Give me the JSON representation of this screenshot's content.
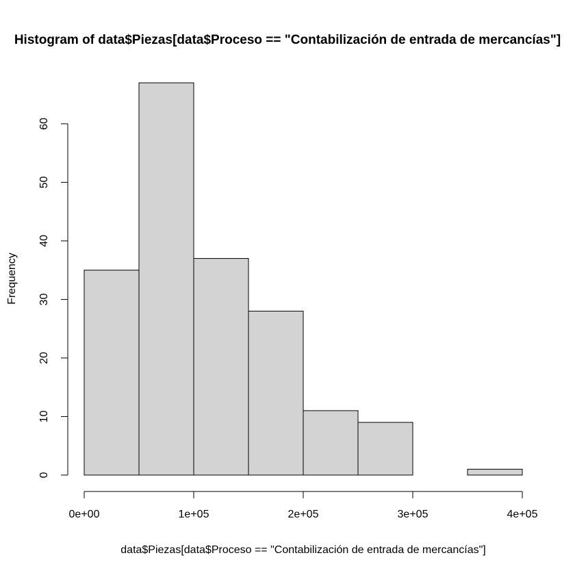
{
  "chart_data": {
    "type": "bar",
    "title": "Histogram of data$Piezas[data$Proceso == \"Contabilización de entrada de mercancías\"]",
    "xlabel": "data$Piezas[data$Proceso == \"Contabilización de entrada de mercancías\"]",
    "ylabel": "Frequency",
    "bins": [
      {
        "from": 0,
        "to": 50000,
        "count": 35
      },
      {
        "from": 50000,
        "to": 100000,
        "count": 67
      },
      {
        "from": 100000,
        "to": 150000,
        "count": 37
      },
      {
        "from": 150000,
        "to": 200000,
        "count": 28
      },
      {
        "from": 200000,
        "to": 250000,
        "count": 11
      },
      {
        "from": 250000,
        "to": 300000,
        "count": 9
      },
      {
        "from": 300000,
        "to": 350000,
        "count": 0
      },
      {
        "from": 350000,
        "to": 400000,
        "count": 1
      }
    ],
    "xlim": [
      0,
      400000
    ],
    "ylim": [
      0,
      67
    ],
    "x_ticks": [
      0,
      100000,
      200000,
      300000,
      400000
    ],
    "x_tick_labels": [
      "0e+00",
      "1e+05",
      "2e+05",
      "3e+05",
      "4e+05"
    ],
    "y_ticks": [
      0,
      10,
      20,
      30,
      40,
      50,
      60
    ],
    "y_tick_labels": [
      "0",
      "10",
      "20",
      "30",
      "40",
      "50",
      "60"
    ],
    "grid": false,
    "colors": {
      "bar_fill": "#d3d3d3",
      "bar_stroke": "#000000"
    }
  }
}
